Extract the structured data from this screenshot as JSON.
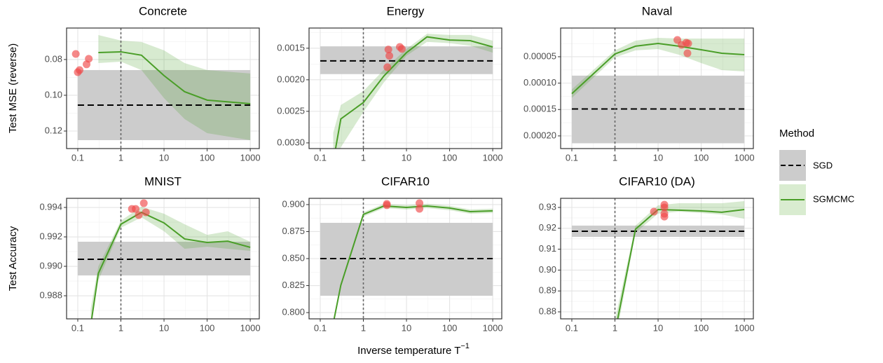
{
  "legend": {
    "title": "Method",
    "entries": [
      {
        "name": "SGD",
        "color": "#000000",
        "fill": "#cccccc"
      },
      {
        "name": "SGMCMC",
        "color": "#4a9e28",
        "fill": "#d9ecd0"
      }
    ]
  },
  "ensemble_color": "#f04848",
  "x_label": {
    "text": "Inverse temperature T",
    "superscript": "−1"
  },
  "chart_data": [
    {
      "type": "line",
      "title": "Concrete",
      "y_label": "Test MSE (reverse)",
      "yreverse": true,
      "grid": true,
      "vline": 1,
      "xlim": [
        0.055,
        1620
      ],
      "xticks": [
        0.1,
        1,
        10,
        100,
        1000
      ],
      "ylim": [
        0.0624,
        0.1298
      ],
      "yticks": [
        0.08,
        {
          "value": 0.1,
          "label": "0.10"
        },
        0.12
      ],
      "x": [
        0.3,
        1,
        3,
        10,
        30,
        100,
        1000
      ],
      "sgmcmc": {
        "values": [
          0.0761,
          0.0757,
          0.0776,
          0.089,
          0.098,
          0.1027,
          0.1047
        ],
        "lower": [
          0.0663,
          0.0694,
          0.0702,
          0.0749,
          0.082,
          0.0859,
          0.0878
        ],
        "upper": [
          0.082,
          0.0812,
          0.0859,
          0.1016,
          0.1133,
          0.1212,
          0.1251
        ]
      },
      "sgd": {
        "value": 0.1055,
        "lower": 0.0859,
        "upper": 0.1251
      },
      "ensemble": {
        "x": [
          0.09,
          0.11,
          0.1,
          0.16,
          0.18
        ],
        "values": [
          0.0769,
          0.0859,
          0.0871,
          0.0827,
          0.0796
        ]
      }
    },
    {
      "type": "line",
      "title": "Energy",
      "yreverse": true,
      "grid": true,
      "vline": 1,
      "xlim": [
        0.055,
        1620
      ],
      "xticks": [
        0.1,
        1,
        10,
        100,
        1000
      ],
      "ylim": [
        0.00118,
        0.00309
      ],
      "yticks": [
        0.0015,
        {
          "value": 0.002,
          "label": "0.0020"
        },
        0.0025,
        {
          "value": 0.003,
          "label": "0.0030"
        }
      ],
      "x": [
        0.2,
        0.3,
        1,
        3,
        10,
        30,
        100,
        300,
        1000
      ],
      "sgmcmc": {
        "values": [
          0.0033,
          0.00262,
          0.00236,
          0.00194,
          0.00157,
          0.00132,
          0.00137,
          0.00138,
          0.00148
        ],
        "lower": [
          0.00284,
          0.0024,
          0.00218,
          0.00184,
          0.00151,
          0.00127,
          0.00129,
          0.00129,
          0.00138
        ],
        "upper": [
          0.0034,
          0.00307,
          0.00251,
          0.00204,
          0.00162,
          0.0014,
          0.00142,
          0.00146,
          0.00157
        ]
      },
      "sgd": {
        "value": 0.0017,
        "lower": 0.00147,
        "upper": 0.00191
      },
      "ensemble": {
        "x": [
          3.8,
          4,
          3.6,
          7,
          7.8
        ],
        "values": [
          0.00152,
          0.00162,
          0.0018,
          0.00148,
          0.00151
        ]
      }
    },
    {
      "type": "line",
      "title": "Naval",
      "yreverse": true,
      "grid": true,
      "vline": 1,
      "xlim": [
        0.055,
        1620
      ],
      "xticks": [
        0.1,
        1,
        10,
        100,
        1000
      ],
      "ylim": [
        -4.4e-06,
        0.000224
      ],
      "yticks": [
        5e-05,
        {
          "value": 0.0001,
          "label": "0.00010"
        },
        0.00015,
        {
          "value": 0.0002,
          "label": "0.00020"
        }
      ],
      "x": [
        0.1,
        1,
        3,
        10,
        30,
        100,
        300,
        1000
      ],
      "sgmcmc": {
        "values": [
          0.00012,
          4.47e-05,
          3e-05,
          2.48e-05,
          3e-05,
          3.67e-05,
          4.34e-05,
          4.6e-05
        ],
        "lower": [
          0.000112,
          3.8e-05,
          1.95e-05,
          1.42e-05,
          1.55e-05,
          1.55e-05,
          1.55e-05,
          1.55e-05
        ],
        "upper": [
          0.000128,
          5.13e-05,
          3.8e-05,
          3.54e-05,
          4.6e-05,
          6.2e-05,
          7.52e-05,
          7.79e-05
        ]
      },
      "sgd": {
        "value": 0.000149,
        "lower": 8.58e-05,
        "upper": 0.000214
      },
      "ensemble": {
        "x": [
          28,
          35,
          45,
          50,
          48
        ],
        "values": [
          1.82e-05,
          2.75e-05,
          2.35e-05,
          2.48e-05,
          4.34e-05
        ]
      }
    },
    {
      "type": "line",
      "title": "MNIST",
      "y_label": "Test Accuracy",
      "yreverse": false,
      "grid": true,
      "vline": 1,
      "xlim": [
        0.055,
        1620
      ],
      "xticks": [
        0.1,
        1,
        10,
        100,
        1000
      ],
      "ylim": [
        0.98643,
        0.99462
      ],
      "yticks": [
        0.988,
        {
          "value": 0.99,
          "label": "0.990"
        },
        0.992,
        0.994
      ],
      "x": [
        0.2,
        0.3,
        1,
        3,
        10,
        30,
        100,
        300,
        1000
      ],
      "sgmcmc": {
        "values": [
          0.986,
          0.98952,
          0.99286,
          0.99367,
          0.99295,
          0.99186,
          0.99162,
          0.99171,
          0.99129
        ],
        "lower": [
          0.98571,
          0.98905,
          0.99262,
          0.99333,
          0.99238,
          0.99119,
          0.99133,
          0.99119,
          0.99105
        ],
        "upper": [
          0.98714,
          0.99,
          0.9931,
          0.99405,
          0.99357,
          0.99286,
          0.99214,
          0.99238,
          0.99167
        ]
      },
      "sgd": {
        "value": 0.99048,
        "lower": 0.98938,
        "upper": 0.99167
      },
      "ensemble": {
        "x": [
          1.8,
          2.2,
          2.6,
          3.4,
          3.8
        ],
        "values": [
          0.9939,
          0.9939,
          0.99348,
          0.99429,
          0.99367
        ]
      }
    },
    {
      "type": "line",
      "title": "CIFAR10",
      "yreverse": false,
      "grid": true,
      "vline": 1,
      "xlim": [
        0.055,
        1620
      ],
      "xticks": [
        0.1,
        1,
        10,
        100,
        1000
      ],
      "ylim": [
        0.7942,
        0.9058
      ],
      "yticks": [
        {
          "value": 0.8,
          "label": "0.800"
        },
        0.825,
        {
          "value": 0.85,
          "label": "0.850"
        },
        0.875,
        {
          "value": 0.9,
          "label": "0.900"
        }
      ],
      "x": [
        0.2,
        0.3,
        1,
        3,
        10,
        30,
        100,
        300,
        1000
      ],
      "sgmcmc": {
        "values": [
          0.79,
          0.8253,
          0.8909,
          0.8987,
          0.8974,
          0.8987,
          0.8968,
          0.8935,
          0.8942
        ],
        "lower": [
          0.787,
          0.8233,
          0.8889,
          0.8967,
          0.8954,
          0.8967,
          0.8948,
          0.8915,
          0.8922
        ],
        "upper": [
          0.793,
          0.8273,
          0.8929,
          0.9007,
          0.8994,
          0.9007,
          0.8988,
          0.8955,
          0.8962
        ]
      },
      "sgd": {
        "value": 0.85,
        "lower": 0.8156,
        "upper": 0.8831
      },
      "ensemble": {
        "x": [
          3.5,
          3.5,
          20,
          20
        ],
        "values": [
          0.9006,
          0.8994,
          0.9013,
          0.8961
        ]
      }
    },
    {
      "type": "line",
      "title": "CIFAR10 (DA)",
      "yreverse": false,
      "grid": true,
      "vline": 1,
      "xlim": [
        0.055,
        1620
      ],
      "xticks": [
        0.1,
        1,
        10,
        100,
        1000
      ],
      "ylim": [
        0.87664,
        0.93436
      ],
      "yticks": [
        0.88,
        0.89,
        {
          "value": 0.9,
          "label": "0.90"
        },
        0.91,
        0.92,
        0.93
      ],
      "x": [
        1,
        3,
        10,
        30,
        100,
        300,
        1000
      ],
      "sgmcmc": {
        "values": [
          0.87,
          0.9196,
          0.929,
          0.9287,
          0.9283,
          0.9277,
          0.929
        ],
        "lower": [
          0.865,
          0.9179,
          0.927,
          0.928,
          0.9273,
          0.9266,
          0.9246
        ],
        "upper": [
          0.876,
          0.9213,
          0.931,
          0.932,
          0.932,
          0.932,
          0.933
        ]
      },
      "sgd": {
        "value": 0.9186,
        "lower": 0.9159,
        "upper": 0.9213
      },
      "ensemble": {
        "x": [
          8,
          14,
          14,
          14,
          14
        ],
        "values": [
          0.928,
          0.9313,
          0.93,
          0.927,
          0.9256
        ]
      }
    }
  ]
}
